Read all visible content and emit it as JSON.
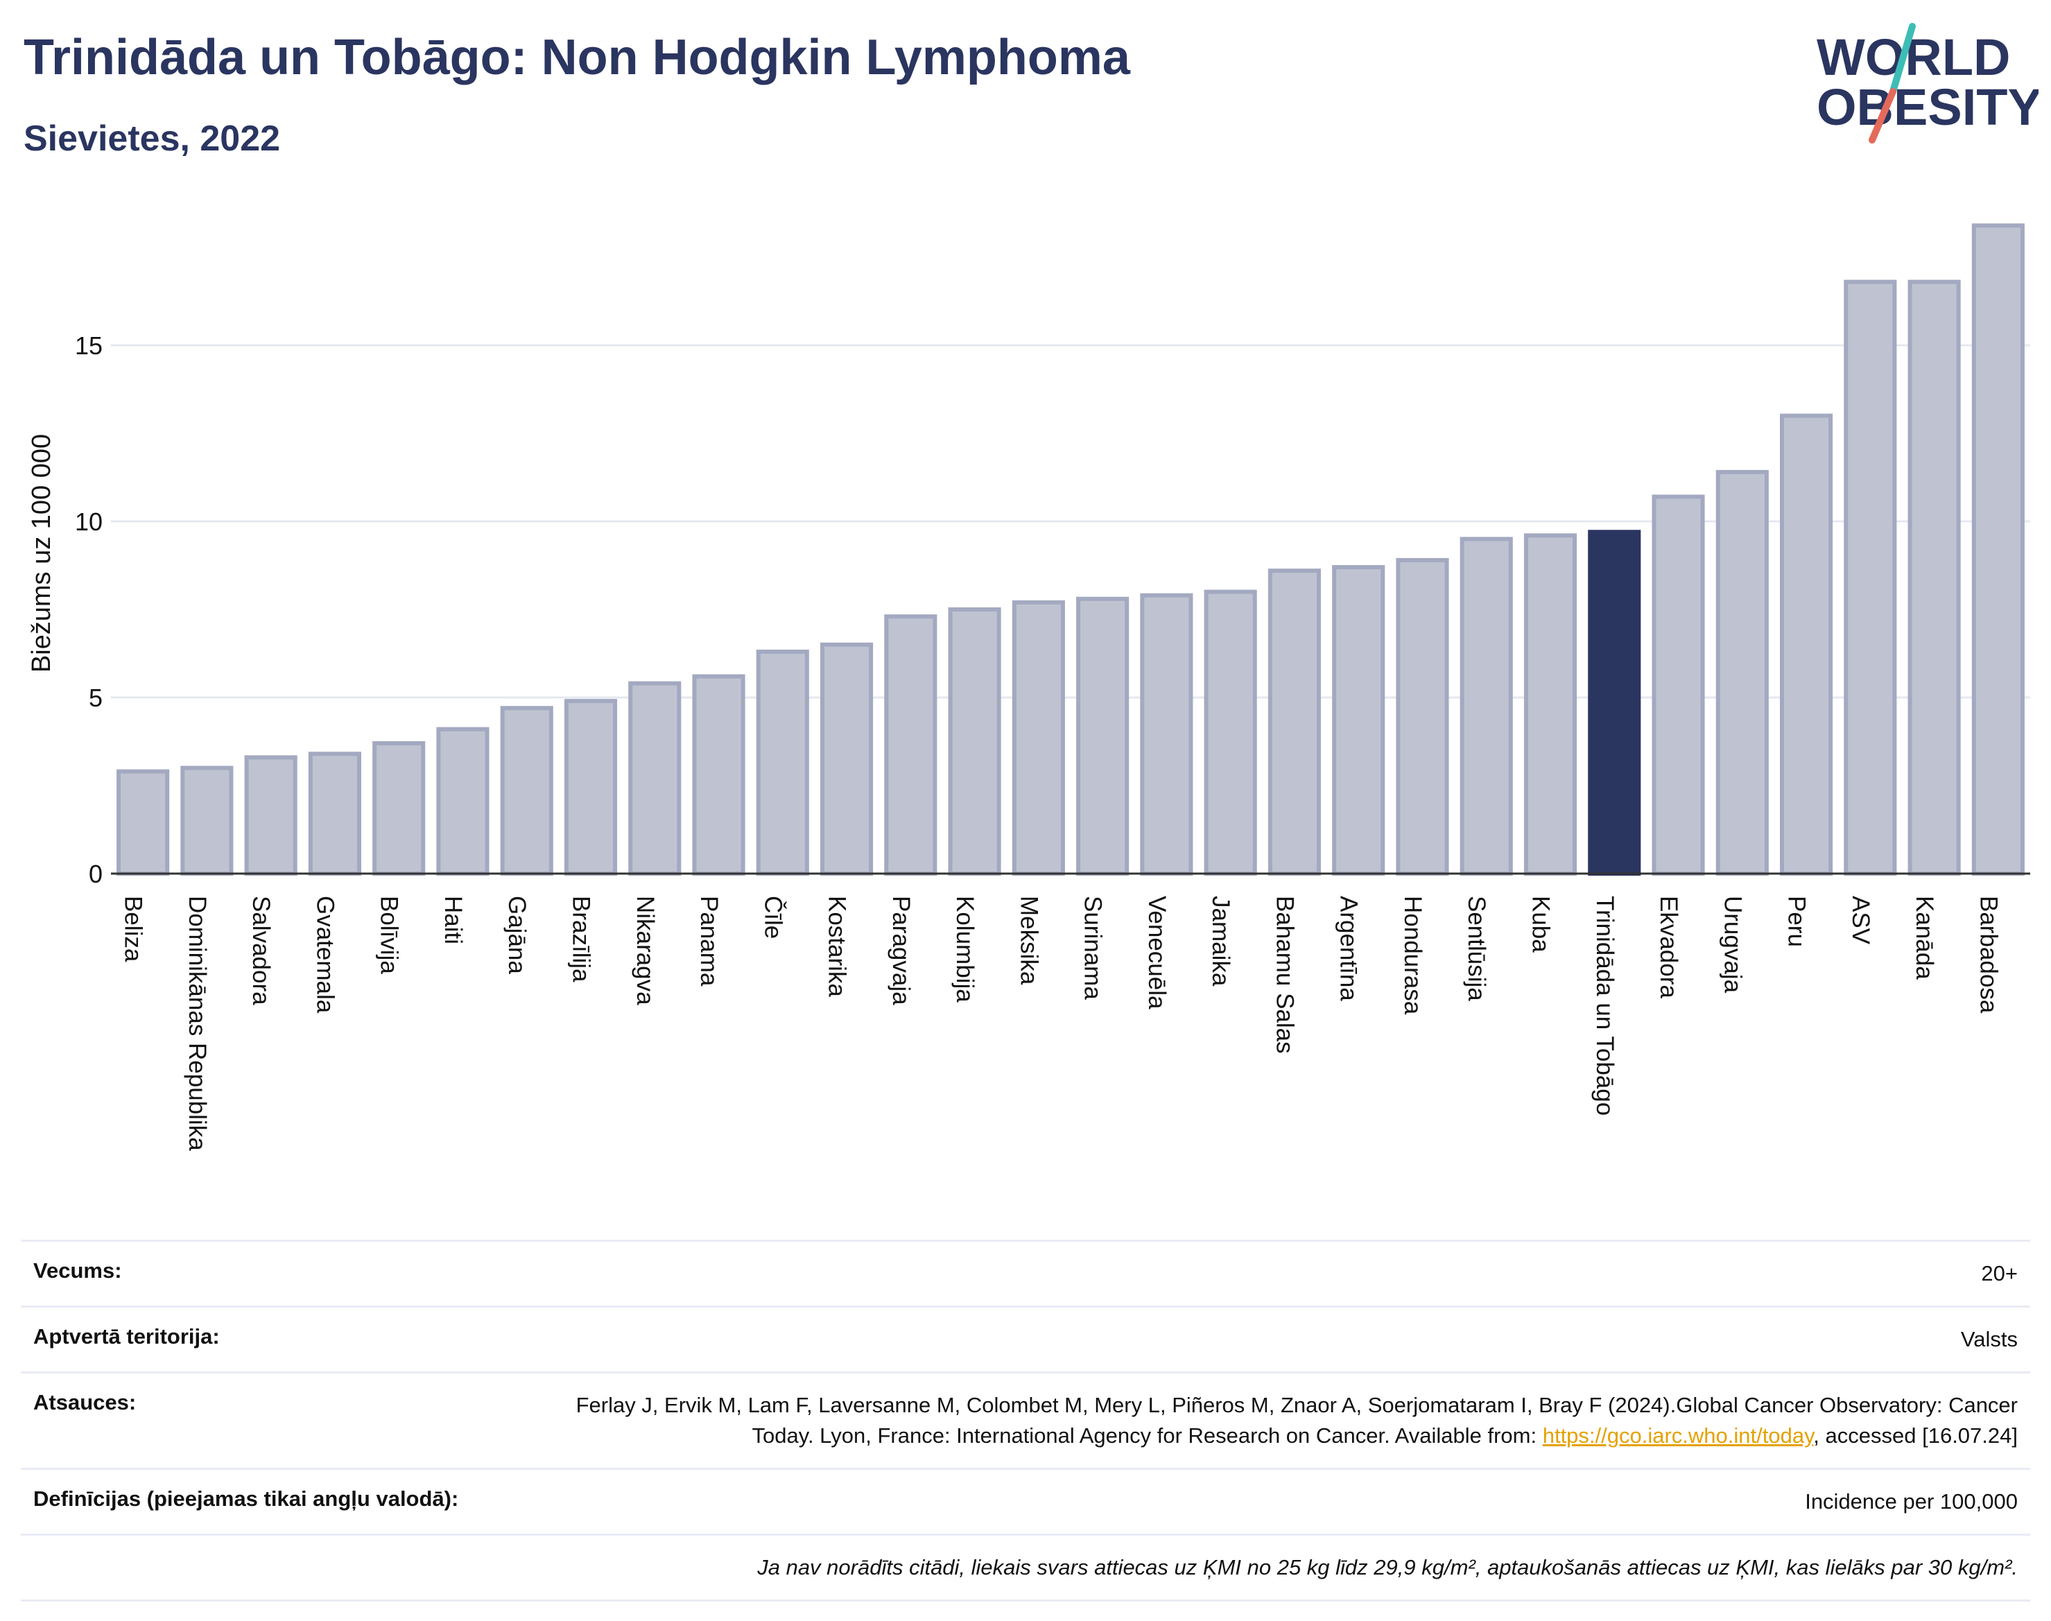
{
  "header": {
    "title": "Trinidāda un Tobāgo: Non Hodgkin Lymphoma",
    "subtitle": "Sievietes, 2022"
  },
  "logo": {
    "line1": "WORLD",
    "line2": "OBESITY"
  },
  "chart_data": {
    "type": "bar",
    "title": "Trinidāda un Tobāgo: Non Hodgkin Lymphoma",
    "subtitle": "Sievietes, 2022",
    "ylabel": "Biežums uz 100 000",
    "xlabel": "",
    "ylim": [
      0,
      18.5
    ],
    "yticks": [
      0,
      5,
      10,
      15
    ],
    "grid": true,
    "highlight": "Trinidāda un Tobāgo",
    "categories": [
      "Beliza",
      "Dominikānas Republika",
      "Salvadora",
      "Gvatemala",
      "Bolīvija",
      "Haiti",
      "Gajāna",
      "Brazīlija",
      "Nikaragva",
      "Panama",
      "Čīle",
      "Kostarika",
      "Paragvaja",
      "Kolumbija",
      "Meksika",
      "Surinama",
      "Venecuēla",
      "Jamaika",
      "Bahamu Salas",
      "Argentīna",
      "Hondurasa",
      "Sentlūsija",
      "Kuba",
      "Trinidāda un Tobāgo",
      "Ekvadora",
      "Urugvaja",
      "Peru",
      "ASV",
      "Kanāda",
      "Barbadosa"
    ],
    "values": [
      2.9,
      3.0,
      3.3,
      3.4,
      3.7,
      4.1,
      4.7,
      4.9,
      5.4,
      5.6,
      6.3,
      6.5,
      7.3,
      7.5,
      7.7,
      7.8,
      7.9,
      8.0,
      8.6,
      8.7,
      8.9,
      9.5,
      9.6,
      9.7,
      10.7,
      11.4,
      13.0,
      16.8,
      16.8,
      18.4
    ],
    "colors": {
      "bar": "#bfc3d1",
      "bar_border": "#a3a9c0",
      "highlight": "#2a3560",
      "grid": "#e6e8f0",
      "axis": "#333333"
    }
  },
  "meta": {
    "age_label": "Vecums:",
    "age_value": "20+",
    "territory_label": "Aptvertā teritorija:",
    "territory_value": "Valsts",
    "refs_label": "Atsauces:",
    "refs_text_1": "Ferlay J, Ervik M, Lam F, Laversanne M, Colombet M, Mery L, Piñeros M, Znaor A, Soerjomataram I, Bray F (2024).Global Cancer Observatory: Cancer Today. Lyon, France: International Agency for Research on Cancer. Available from: ",
    "refs_link": "https://gco.iarc.who.int/today",
    "refs_text_2": ", accessed [16.07.24]",
    "defs_label": "Definīcijas (pieejamas tikai angļu valodā):",
    "defs_value": "Incidence per 100,000",
    "note": "Ja nav norādīts citādi, liekais svars attiecas uz ĶMI no 25 kg līdz 29,9 kg/m², aptaukošanās attiecas uz ĶMI, kas lielāks par 30 kg/m²."
  }
}
